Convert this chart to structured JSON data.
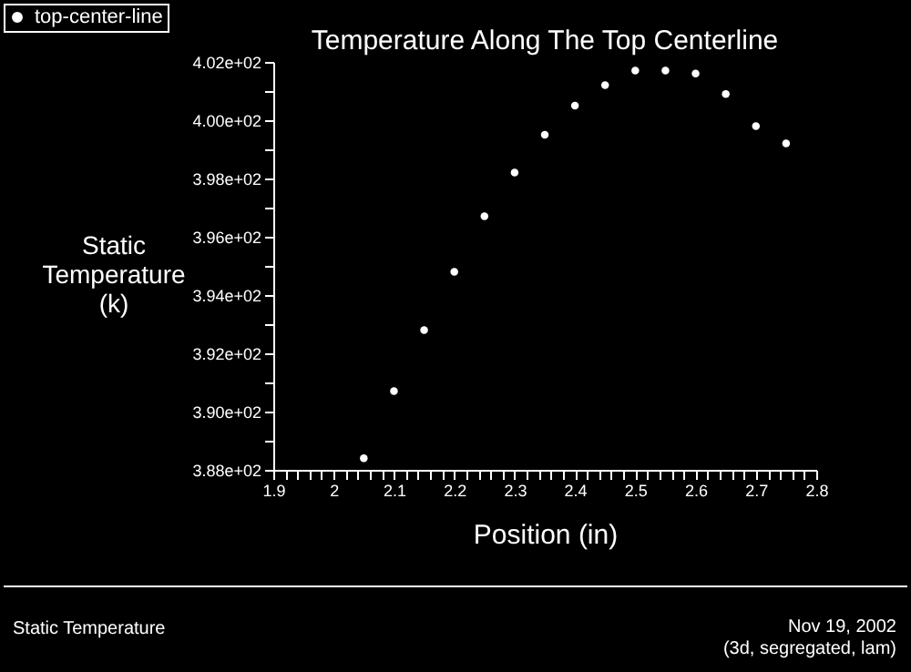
{
  "chart_data": {
    "type": "scatter",
    "title": "Temperature Along The Top Centerline",
    "xlabel": "Position (in)",
    "ylabel": "Static Temperature (k)",
    "x": [
      2.05,
      2.1,
      2.15,
      2.2,
      2.25,
      2.3,
      2.35,
      2.4,
      2.45,
      2.5,
      2.55,
      2.6,
      2.65,
      2.7,
      2.75
    ],
    "series": [
      {
        "name": "top-center-line",
        "color": "#ffffff",
        "values": [
          388.4,
          390.7,
          392.8,
          394.8,
          396.7,
          398.2,
          399.5,
          400.5,
          401.2,
          401.7,
          401.7,
          401.6,
          400.9,
          399.8,
          399.2
        ]
      }
    ],
    "xlim": [
      1.9,
      2.8
    ],
    "xticks": [
      1.9,
      {
        "value": 1.92,
        "label": null
      },
      {
        "value": 1.94,
        "label": null
      },
      {
        "value": 1.96,
        "label": null
      },
      {
        "value": 1.98,
        "label": null
      },
      2,
      {
        "value": 2.02,
        "label": null
      },
      {
        "value": 2.04,
        "label": null
      },
      {
        "value": 2.06,
        "label": null
      },
      {
        "value": 2.08,
        "label": null
      },
      2.1,
      {
        "value": 2.12,
        "label": null
      },
      {
        "value": 2.14,
        "label": null
      },
      {
        "value": 2.16,
        "label": null
      },
      {
        "value": 2.18,
        "label": null
      },
      2.2,
      {
        "value": 2.22,
        "label": null
      },
      {
        "value": 2.24,
        "label": null
      },
      {
        "value": 2.26,
        "label": null
      },
      {
        "value": 2.28,
        "label": null
      },
      2.3,
      {
        "value": 2.32,
        "label": null
      },
      {
        "value": 2.34,
        "label": null
      },
      {
        "value": 2.36,
        "label": null
      },
      {
        "value": 2.38,
        "label": null
      },
      2.4,
      {
        "value": 2.42,
        "label": null
      },
      {
        "value": 2.44,
        "label": null
      },
      {
        "value": 2.46,
        "label": null
      },
      {
        "value": 2.48,
        "label": null
      },
      2.5,
      {
        "value": 2.52,
        "label": null
      },
      {
        "value": 2.54,
        "label": null
      },
      {
        "value": 2.56,
        "label": null
      },
      {
        "value": 2.58,
        "label": null
      },
      2.6,
      {
        "value": 2.62,
        "label": null
      },
      {
        "value": 2.64,
        "label": null
      },
      {
        "value": 2.66,
        "label": null
      },
      {
        "value": 2.68,
        "label": null
      },
      2.7,
      {
        "value": 2.72,
        "label": null
      },
      {
        "value": 2.74,
        "label": null
      },
      {
        "value": 2.76,
        "label": null
      },
      {
        "value": 2.78,
        "label": null
      },
      2.8
    ],
    "ylim": [
      388,
      402
    ],
    "yticks": [
      {
        "value": 388,
        "label": "3.88e+02"
      },
      {
        "value": 389,
        "label": null
      },
      {
        "value": 390,
        "label": "3.90e+02"
      },
      {
        "value": 391,
        "label": null
      },
      {
        "value": 392,
        "label": "3.92e+02"
      },
      {
        "value": 393,
        "label": null
      },
      {
        "value": 394,
        "label": "3.94e+02"
      },
      {
        "value": 395,
        "label": null
      },
      {
        "value": 396,
        "label": "3.96e+02"
      },
      {
        "value": 397,
        "label": null
      },
      {
        "value": 398,
        "label": "3.98e+02"
      },
      {
        "value": 399,
        "label": null
      },
      {
        "value": 400,
        "label": "4.00e+02"
      },
      {
        "value": 401,
        "label": null
      },
      {
        "value": 402,
        "label": "4.02e+02"
      }
    ],
    "grid": false,
    "legend": "top left",
    "marker": "circle",
    "annotations": [
      "Static Temperature",
      "Nov 19, 2002",
      "(3d, segregated, lam)"
    ]
  }
}
